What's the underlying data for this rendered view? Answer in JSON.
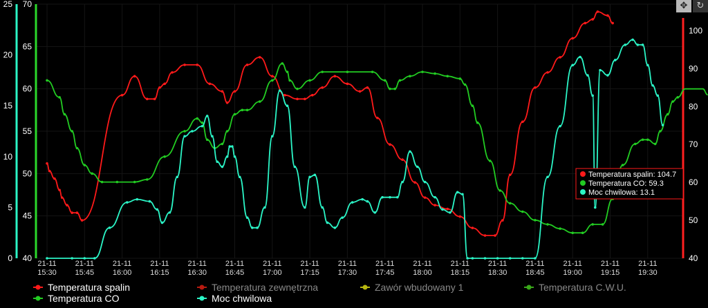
{
  "toolbar": {
    "move_icon": "move-icon",
    "refresh_icon": "refresh-icon"
  },
  "chart_data": {
    "type": "line",
    "x_ticks": [
      [
        "21-11",
        "15:30"
      ],
      [
        "21-11",
        "15:45"
      ],
      [
        "21-11",
        "16:00"
      ],
      [
        "21-11",
        "16:15"
      ],
      [
        "21-11",
        "16:30"
      ],
      [
        "21-11",
        "16:45"
      ],
      [
        "21-11",
        "17:00"
      ],
      [
        "21-11",
        "17:15"
      ],
      [
        "21-11",
        "17:30"
      ],
      [
        "21-11",
        "17:45"
      ],
      [
        "21-11",
        "18:00"
      ],
      [
        "21-11",
        "18:15"
      ],
      [
        "21-11",
        "18:30"
      ],
      [
        "21-11",
        "18:45"
      ],
      [
        "21-11",
        "19:00"
      ],
      [
        "21-11",
        "19:15"
      ],
      [
        "21-11",
        "19:30"
      ]
    ],
    "axes": {
      "left_outer": {
        "ticks": [
          "0",
          "5",
          "10",
          "15",
          "20",
          "25"
        ],
        "range": [
          0,
          25
        ],
        "color": "#2bf5c6"
      },
      "left_inner": {
        "ticks": [
          "40",
          "45",
          "50",
          "55",
          "60",
          "65",
          "70"
        ],
        "range": [
          40,
          70
        ],
        "color": "#2bd92b"
      },
      "right": {
        "ticks": [
          "40",
          "50",
          "60",
          "70",
          "80",
          "90",
          "100"
        ],
        "range": [
          40,
          107
        ],
        "color": "#ff2020"
      }
    },
    "series": [
      {
        "name": "Temperatura spalin",
        "color": "#ff1a1a",
        "axis": "right",
        "points": [
          [
            0,
            65
          ],
          [
            1,
            63
          ],
          [
            3,
            61
          ],
          [
            5,
            58
          ],
          [
            6,
            56
          ],
          [
            8,
            54
          ],
          [
            10,
            52
          ],
          [
            12,
            52
          ],
          [
            14,
            50
          ],
          [
            30,
            83
          ],
          [
            35,
            88
          ],
          [
            40,
            82
          ],
          [
            43,
            82
          ],
          [
            45,
            85
          ],
          [
            47,
            86
          ],
          [
            50,
            89
          ],
          [
            55,
            91
          ],
          [
            60,
            91
          ],
          [
            65,
            86
          ],
          [
            70,
            84
          ],
          [
            72,
            81
          ],
          [
            75,
            84
          ],
          [
            80,
            91
          ],
          [
            85,
            93
          ],
          [
            90,
            88
          ],
          [
            95,
            83
          ],
          [
            100,
            82
          ],
          [
            103,
            82
          ],
          [
            106,
            83
          ],
          [
            110,
            85
          ],
          [
            115,
            88
          ],
          [
            120,
            86
          ],
          [
            125,
            84
          ],
          [
            128,
            85
          ],
          [
            132,
            77
          ],
          [
            137,
            70
          ],
          [
            142,
            66
          ],
          [
            147,
            60
          ],
          [
            151,
            56
          ],
          [
            155,
            54
          ],
          [
            160,
            53
          ],
          [
            165,
            51
          ],
          [
            170,
            48
          ],
          [
            175,
            46
          ],
          [
            179,
            46
          ],
          [
            182,
            50
          ],
          [
            185,
            62
          ],
          [
            190,
            76
          ],
          [
            195,
            85
          ],
          [
            200,
            89
          ],
          [
            205,
            93
          ],
          [
            210,
            98
          ],
          [
            215,
            102
          ],
          [
            218,
            103
          ],
          [
            220,
            105
          ],
          [
            224,
            104
          ],
          [
            226,
            102
          ]
        ]
      },
      {
        "name": "Temperatura zewnętrzna",
        "color": "#b81a10",
        "axis": "left_outer",
        "points": []
      },
      {
        "name": "Zawór wbudowany 1",
        "color": "#b8b810",
        "axis": "left_outer",
        "points": []
      },
      {
        "name": "Temperatura C.W.U.",
        "color": "#3aa81a",
        "axis": "left_outer",
        "points": []
      },
      {
        "name": "Temperatura CO",
        "color": "#22cc22",
        "axis": "left_inner",
        "points": [
          [
            0,
            61
          ],
          [
            5,
            59
          ],
          [
            7,
            57
          ],
          [
            10,
            55
          ],
          [
            12,
            53
          ],
          [
            15,
            51
          ],
          [
            18,
            50
          ],
          [
            22,
            49
          ],
          [
            28,
            49
          ],
          [
            35,
            49
          ],
          [
            40,
            49.3
          ],
          [
            47,
            52
          ],
          [
            55,
            55
          ],
          [
            60,
            56.5
          ],
          [
            62,
            56
          ],
          [
            64,
            54
          ],
          [
            67,
            53
          ],
          [
            70,
            53.5
          ],
          [
            72,
            55
          ],
          [
            75,
            57
          ],
          [
            78,
            57.5
          ],
          [
            80,
            57.5
          ],
          [
            85,
            58.5
          ],
          [
            90,
            61
          ],
          [
            94,
            63
          ],
          [
            96,
            62
          ],
          [
            97,
            61
          ],
          [
            100,
            60
          ],
          [
            105,
            61
          ],
          [
            110,
            62
          ],
          [
            120,
            62
          ],
          [
            130,
            62
          ],
          [
            135,
            61
          ],
          [
            137,
            60
          ],
          [
            139,
            60
          ],
          [
            141,
            61
          ],
          [
            145,
            61.5
          ],
          [
            150,
            62
          ],
          [
            155,
            61.8
          ],
          [
            160,
            61.5
          ],
          [
            165,
            61.2
          ],
          [
            167,
            60.5
          ],
          [
            170,
            58
          ],
          [
            172,
            56
          ],
          [
            177,
            51.5
          ],
          [
            181,
            48
          ],
          [
            185,
            46.5
          ],
          [
            190,
            45.5
          ],
          [
            195,
            44.5
          ],
          [
            200,
            44
          ],
          [
            205,
            43.5
          ],
          [
            210,
            43
          ],
          [
            214,
            43
          ],
          [
            218,
            44
          ],
          [
            222,
            44
          ],
          [
            226,
            47
          ],
          [
            230,
            51
          ],
          [
            235,
            53.5
          ],
          [
            238,
            54
          ],
          [
            240,
            54
          ],
          [
            243,
            53.5
          ],
          [
            245,
            55
          ],
          [
            248,
            57
          ],
          [
            250,
            58.5
          ],
          [
            252,
            59
          ],
          [
            255,
            60
          ],
          [
            258,
            60
          ],
          [
            262,
            60
          ],
          [
            264,
            59.3
          ]
        ]
      },
      {
        "name": "Moc chwilowa",
        "color": "#2bf5c6",
        "axis": "left_outer",
        "points": [
          [
            0,
            0
          ],
          [
            10,
            0
          ],
          [
            15,
            0
          ],
          [
            19,
            0
          ],
          [
            25,
            3
          ],
          [
            32,
            5.5
          ],
          [
            36,
            5.8
          ],
          [
            41,
            5.6
          ],
          [
            44,
            4.8
          ],
          [
            46,
            3.5
          ],
          [
            49,
            4.5
          ],
          [
            52,
            8
          ],
          [
            55,
            12
          ],
          [
            58,
            12.5
          ],
          [
            62,
            13
          ],
          [
            64,
            14
          ],
          [
            66,
            12
          ],
          [
            68,
            9.5
          ],
          [
            70,
            9
          ],
          [
            72,
            10
          ],
          [
            73,
            11
          ],
          [
            74,
            11
          ],
          [
            75,
            10
          ],
          [
            77,
            8
          ],
          [
            80,
            4
          ],
          [
            82,
            3
          ],
          [
            84,
            3
          ],
          [
            87,
            5
          ],
          [
            90,
            12
          ],
          [
            93,
            16.5
          ],
          [
            96,
            15
          ],
          [
            99,
            9
          ],
          [
            103,
            5
          ],
          [
            105,
            8
          ],
          [
            107,
            8.2
          ],
          [
            110,
            5
          ],
          [
            112,
            3.5
          ],
          [
            115,
            3
          ],
          [
            118,
            4
          ],
          [
            122,
            5.5
          ],
          [
            126,
            5.8
          ],
          [
            128,
            5.6
          ],
          [
            131,
            4.5
          ],
          [
            134,
            6
          ],
          [
            137,
            6
          ],
          [
            140,
            6
          ],
          [
            142,
            7.5
          ],
          [
            145,
            10.5
          ],
          [
            148,
            9
          ],
          [
            151,
            7.5
          ],
          [
            155,
            6
          ],
          [
            158,
            4.8
          ],
          [
            161,
            4.5
          ],
          [
            164,
            6.5
          ],
          [
            166,
            6.3
          ],
          [
            168,
            0
          ],
          [
            170,
            0
          ],
          [
            175,
            0
          ],
          [
            180,
            0
          ],
          [
            185,
            0
          ],
          [
            190,
            0
          ],
          [
            195,
            0
          ],
          [
            200,
            8
          ],
          [
            205,
            13
          ],
          [
            210,
            19
          ],
          [
            213,
            19.8
          ],
          [
            216,
            18
          ],
          [
            218,
            16
          ],
          [
            219,
            5
          ],
          [
            221,
            18.5
          ],
          [
            224,
            18
          ],
          [
            227,
            19.5
          ],
          [
            231,
            21
          ],
          [
            234,
            21.5
          ],
          [
            236,
            21
          ],
          [
            238,
            21
          ],
          [
            240,
            19
          ],
          [
            242,
            17
          ],
          [
            244,
            16
          ],
          [
            246,
            13.1
          ]
        ]
      }
    ],
    "legend": [
      {
        "label": "Temperatura spalin",
        "color": "#ff1a1a",
        "active": true
      },
      {
        "label": "Temperatura zewnętrzna",
        "color": "#b81a10",
        "active": false
      },
      {
        "label": "Zawór wbudowany 1",
        "color": "#b8b810",
        "active": false
      },
      {
        "label": "Temperatura C.W.U.",
        "color": "#3aa81a",
        "active": false
      },
      {
        "label": "Temperatura CO",
        "color": "#22cc22",
        "active": true
      },
      {
        "label": "Moc chwilowa",
        "color": "#2bf5c6",
        "active": true
      }
    ],
    "tooltip": [
      {
        "label": "Temperatura spalin: 104.7",
        "color": "#ff1a1a"
      },
      {
        "label": "Temperatura CO: 59.3",
        "color": "#22cc22"
      },
      {
        "label": "Moc chwilowa: 13.1",
        "color": "#2bf5c6"
      }
    ]
  }
}
